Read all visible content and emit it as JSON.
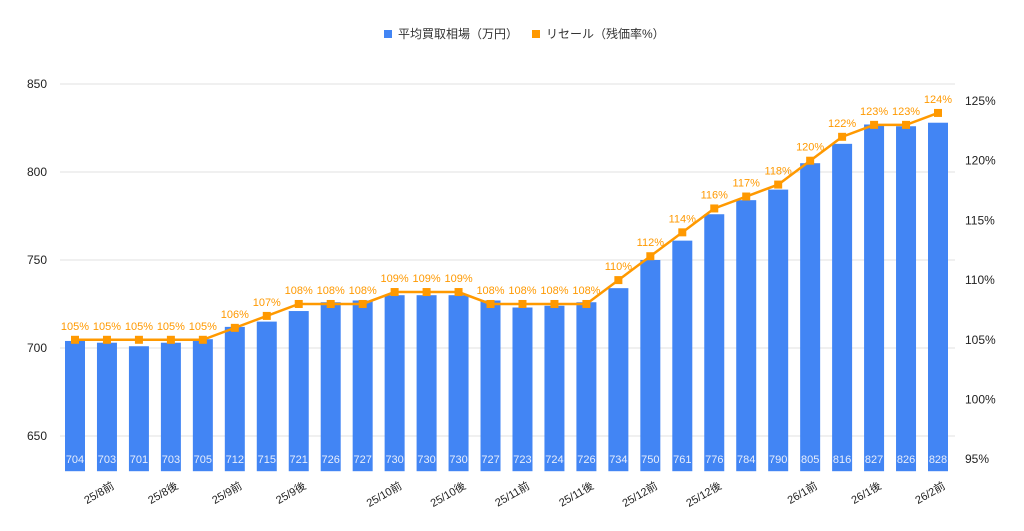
{
  "chart_data": {
    "type": "bar+line",
    "title": "",
    "legend": {
      "position": "top",
      "entries": [
        "平均買取相場（万円）",
        "リセール（残価率%）"
      ]
    },
    "categories": [
      "",
      "25/8前",
      "",
      "25/8後",
      "",
      "25/9前",
      "",
      "25/9後",
      "",
      "",
      "25/10前",
      "",
      "25/10後",
      "",
      "25/11前",
      "",
      "25/11後",
      "",
      "25/12前",
      "",
      "25/12後",
      "",
      "",
      "26/1前",
      "",
      "26/1後",
      "",
      "26/2前"
    ],
    "series": [
      {
        "name": "平均買取相場（万円）",
        "type": "bar",
        "axis": "left",
        "color": "#4285f4",
        "values": [
          704,
          703,
          701,
          703,
          705,
          712,
          715,
          721,
          726,
          727,
          730,
          730,
          730,
          727,
          723,
          724,
          726,
          734,
          750,
          761,
          776,
          784,
          790,
          805,
          816,
          827,
          826,
          828
        ]
      },
      {
        "name": "リセール（残価率%）",
        "type": "line",
        "axis": "right",
        "color": "#ff9900",
        "values": [
          105,
          105,
          105,
          105,
          105,
          106,
          107,
          108,
          108,
          108,
          109,
          109,
          109,
          108,
          108,
          108,
          108,
          110,
          112,
          114,
          116,
          117,
          118,
          120,
          122,
          123,
          123,
          124
        ]
      }
    ],
    "left_axis": {
      "ylim": [
        630,
        850
      ],
      "ticks": [
        650,
        700,
        750,
        800,
        850
      ]
    },
    "right_axis": {
      "ylim": [
        94,
        126
      ],
      "ticks": [
        "95%",
        "100%",
        "105%",
        "110%",
        "115%",
        "120%",
        "125%"
      ]
    },
    "grid": true
  }
}
